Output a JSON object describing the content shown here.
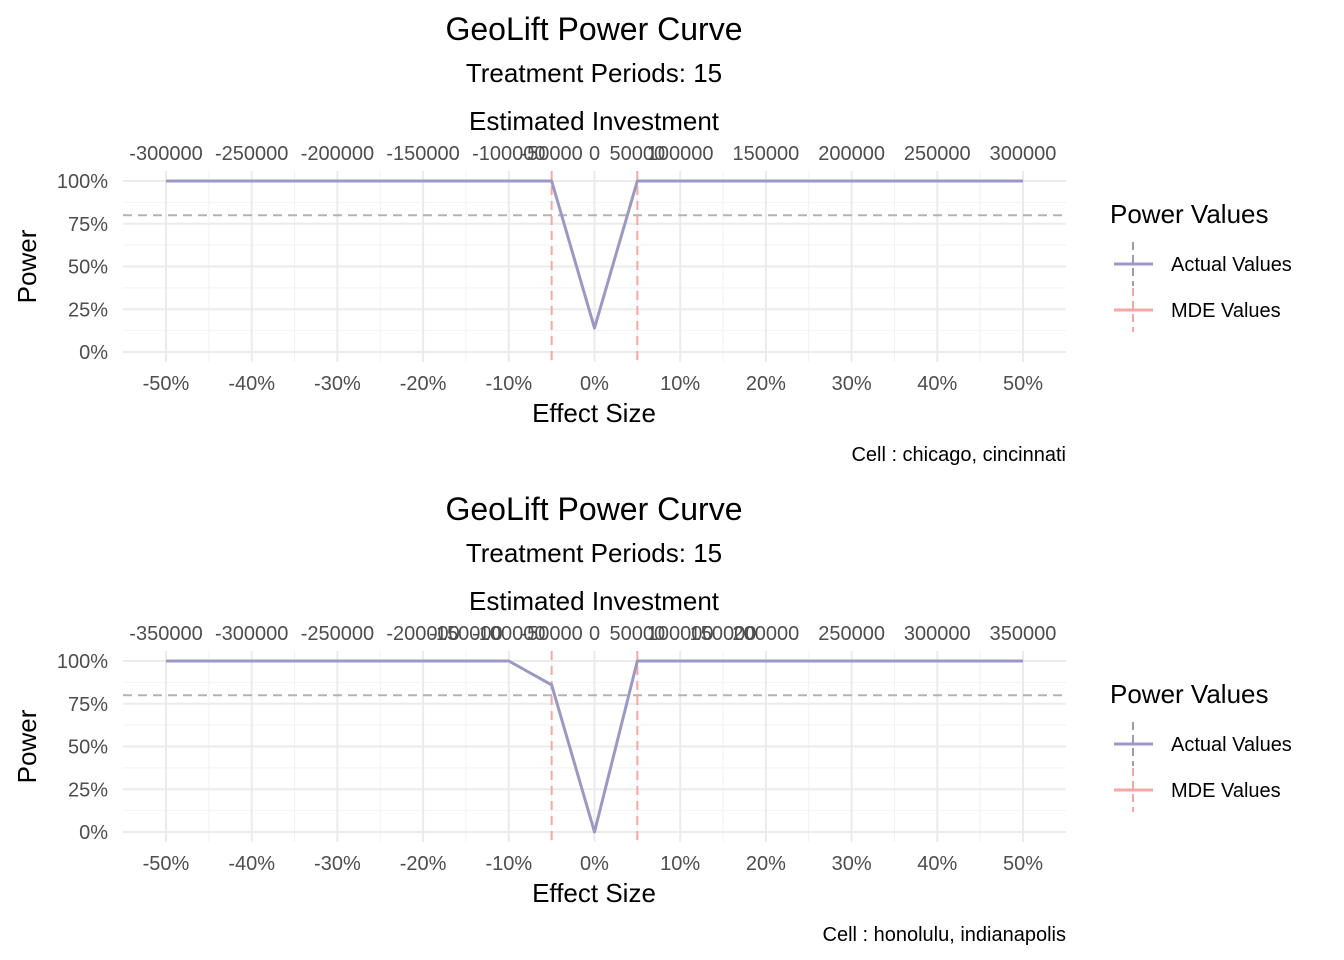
{
  "chart_data": [
    {
      "type": "line",
      "title": "GeoLift Power Curve",
      "subtitle": "Treatment Periods: 15",
      "top_axis_label": "Estimated Investment",
      "top_axis": {
        "breaks": [
          -0.5,
          -0.4,
          -0.3,
          -0.2,
          -0.1,
          -0.05,
          0,
          0.05,
          0.1,
          0.2,
          0.3,
          0.4,
          0.5
        ],
        "labels": [
          "-300000",
          "-250000",
          "-200000",
          "-150000",
          "-100000",
          "-50000",
          "0",
          "50000",
          "100000",
          "150000",
          "200000",
          "250000",
          "300000"
        ]
      },
      "xlabel": "Effect Size",
      "ylabel": "Power",
      "xlim": [
        -0.5,
        0.5
      ],
      "ylim": [
        0,
        1
      ],
      "x_ticks": [
        -0.5,
        -0.4,
        -0.3,
        -0.2,
        -0.1,
        0,
        0.1,
        0.2,
        0.3,
        0.4,
        0.5
      ],
      "x_tick_labels": [
        "-50%",
        "-40%",
        "-30%",
        "-20%",
        "-10%",
        "0%",
        "10%",
        "20%",
        "30%",
        "40%",
        "50%"
      ],
      "y_ticks": [
        0,
        0.25,
        0.5,
        0.75,
        1
      ],
      "y_tick_labels": [
        "0%",
        "25%",
        "50%",
        "75%",
        "100%"
      ],
      "series": [
        {
          "name": "Actual Values",
          "color": "#9b99c4",
          "x": [
            -0.5,
            -0.4,
            -0.3,
            -0.2,
            -0.1,
            -0.05,
            0,
            0.05,
            0.1,
            0.2,
            0.3,
            0.4,
            0.5
          ],
          "y": [
            1,
            1,
            1,
            1,
            1,
            1,
            0.14,
            1,
            1,
            1,
            1,
            1,
            1
          ]
        }
      ],
      "mde_lines": [
        -0.05,
        0.05
      ],
      "mde_color": "#f8a6a2",
      "power_threshold": 0.8,
      "threshold_color": "#b3b3b3",
      "caption": "Cell : chicago, cincinnati",
      "legend": {
        "title": "Power Values",
        "entries": [
          "Actual Values",
          "MDE Values"
        ],
        "position": "right"
      }
    },
    {
      "type": "line",
      "title": "GeoLift Power Curve",
      "subtitle": "Treatment Periods: 15",
      "top_axis_label": "Estimated Investment",
      "top_axis": {
        "breaks": [
          -0.5,
          -0.4,
          -0.3,
          -0.2,
          -0.15,
          -0.1,
          -0.05,
          0,
          0.05,
          0.1,
          0.15,
          0.2,
          0.3,
          0.4,
          0.5
        ],
        "labels": [
          "-350000",
          "-300000",
          "-250000",
          "-200000",
          "-150000",
          "-100000",
          "-50000",
          "0",
          "50000",
          "100000",
          "150000",
          "200000",
          "250000",
          "300000",
          "350000"
        ]
      },
      "xlabel": "Effect Size",
      "ylabel": "Power",
      "xlim": [
        -0.5,
        0.5
      ],
      "ylim": [
        0,
        1
      ],
      "x_ticks": [
        -0.5,
        -0.4,
        -0.3,
        -0.2,
        -0.1,
        0,
        0.1,
        0.2,
        0.3,
        0.4,
        0.5
      ],
      "x_tick_labels": [
        "-50%",
        "-40%",
        "-30%",
        "-20%",
        "-10%",
        "0%",
        "10%",
        "20%",
        "30%",
        "40%",
        "50%"
      ],
      "y_ticks": [
        0,
        0.25,
        0.5,
        0.75,
        1
      ],
      "y_tick_labels": [
        "0%",
        "25%",
        "50%",
        "75%",
        "100%"
      ],
      "series": [
        {
          "name": "Actual Values",
          "color": "#9b99c4",
          "x": [
            -0.5,
            -0.4,
            -0.3,
            -0.2,
            -0.1,
            -0.05,
            0,
            0.05,
            0.1,
            0.2,
            0.3,
            0.4,
            0.5
          ],
          "y": [
            1,
            1,
            1,
            1,
            1,
            0.86,
            0,
            1,
            1,
            1,
            1,
            1,
            1
          ]
        }
      ],
      "mde_lines": [
        -0.05,
        0.05
      ],
      "mde_color": "#f8a6a2",
      "power_threshold": 0.8,
      "threshold_color": "#b3b3b3",
      "caption": "Cell : honolulu, indianapolis",
      "legend": {
        "title": "Power Values",
        "entries": [
          "Actual Values",
          "MDE Values"
        ],
        "position": "right"
      }
    }
  ]
}
